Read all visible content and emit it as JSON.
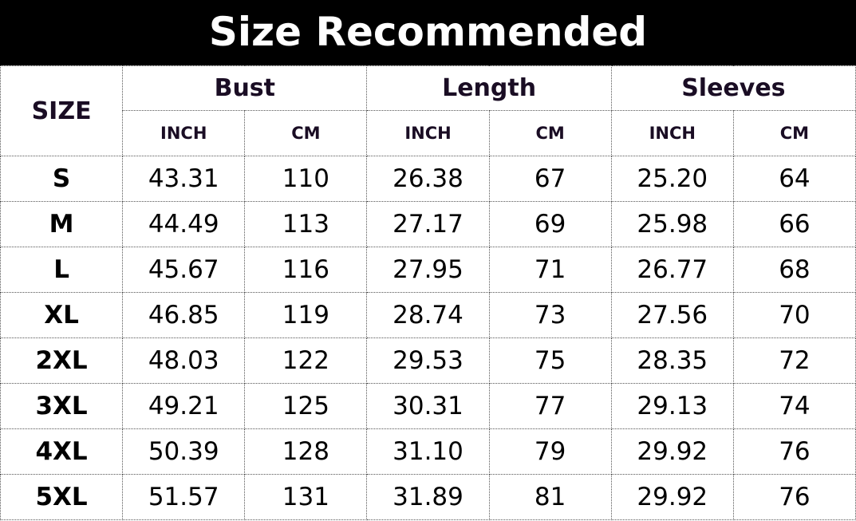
{
  "title": "Size Recommended",
  "header": {
    "size_label": "SIZE",
    "groups": [
      "Bust",
      "Length",
      "Sleeves"
    ],
    "units": [
      "INCH",
      "CM",
      "INCH",
      "CM",
      "INCH",
      "CM"
    ]
  },
  "rows": [
    [
      "S",
      "43.31",
      "110",
      "26.38",
      "67",
      "25.20",
      "64"
    ],
    [
      "M",
      "44.49",
      "113",
      "27.17",
      "69",
      "25.98",
      "66"
    ],
    [
      "L",
      "45.67",
      "116",
      "27.95",
      "71",
      "26.77",
      "68"
    ],
    [
      "XL",
      "46.85",
      "119",
      "28.74",
      "73",
      "27.56",
      "70"
    ],
    [
      "2XL",
      "48.03",
      "122",
      "29.53",
      "75",
      "28.35",
      "72"
    ],
    [
      "3XL",
      "49.21",
      "125",
      "30.31",
      "77",
      "29.13",
      "74"
    ],
    [
      "4XL",
      "50.39",
      "128",
      "31.10",
      "79",
      "29.92",
      "76"
    ],
    [
      "5XL",
      "51.57",
      "131",
      "31.89",
      "81",
      "29.92",
      "76"
    ]
  ]
}
